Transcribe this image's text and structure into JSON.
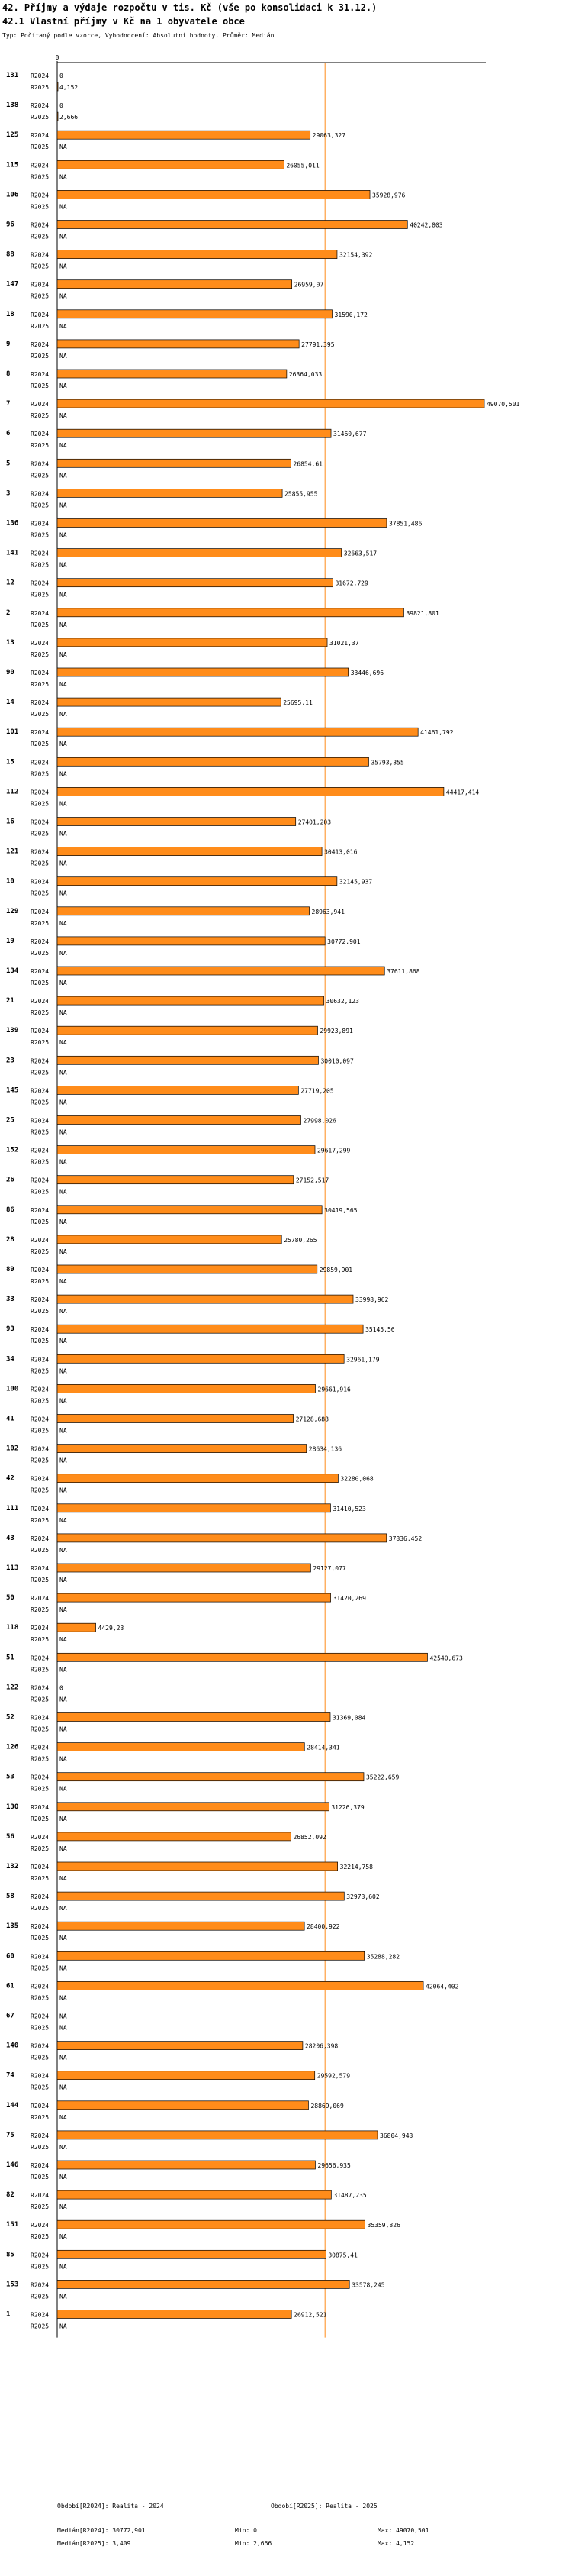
{
  "title": "42. Příjmy a výdaje rozpočtu v tis. Kč (vše po konsolidaci k 31.12.)",
  "subtitle": "42.1 Vlastní příjmy v Kč na 1 obyvatele obce",
  "info": "Typ: Počítaný podle vzorce, Vyhodnocení: Absolutní hodnoty, Průměr: Medián",
  "chart_data": {
    "type": "bar",
    "orientation": "horizontal",
    "xlim": [
      0,
      49070.501
    ],
    "x_ticks": [
      0
    ],
    "median_line": 30772.901,
    "colors": {
      "bar": "#ff8c1a",
      "median": "#ff8c1a",
      "axis": "#000000"
    },
    "series_names": [
      "R2024",
      "R2025"
    ],
    "categories": [
      "131",
      "138",
      "125",
      "115",
      "106",
      "96",
      "88",
      "147",
      "18",
      "9",
      "8",
      "7",
      "6",
      "5",
      "3",
      "136",
      "141",
      "12",
      "2",
      "13",
      "90",
      "14",
      "101",
      "15",
      "112",
      "16",
      "121",
      "10",
      "129",
      "19",
      "134",
      "21",
      "139",
      "23",
      "145",
      "25",
      "152",
      "26",
      "86",
      "28",
      "89",
      "33",
      "93",
      "34",
      "100",
      "41",
      "102",
      "42",
      "111",
      "43",
      "113",
      "50",
      "118",
      "51",
      "122",
      "52",
      "126",
      "53",
      "130",
      "56",
      "132",
      "58",
      "135",
      "60",
      "61",
      "67",
      "140",
      "74",
      "144",
      "75",
      "146",
      "82",
      "151",
      "85",
      "153",
      "1"
    ],
    "series": [
      {
        "name": "R2024",
        "values": [
          0,
          0,
          29063.327,
          26055.011,
          35928.976,
          40242.803,
          32154.392,
          26959.07,
          31590.172,
          27791.395,
          26364.033,
          49070.501,
          31460.677,
          26854.61,
          25855.955,
          37851.486,
          32663.517,
          31672.729,
          39821.801,
          31021.37,
          33446.696,
          25695.11,
          41461.792,
          35793.355,
          44417.414,
          27401.203,
          30413.016,
          32145.937,
          28963.941,
          30772.901,
          37611.868,
          30632.123,
          29923.891,
          30010.097,
          27719.205,
          27998.026,
          29617.299,
          27152.517,
          30419.565,
          25780.265,
          29859.901,
          33998.962,
          35145.56,
          32961.179,
          29661.916,
          27128.688,
          28634.136,
          32280.068,
          31410.523,
          37836.452,
          29127.077,
          31420.269,
          4429.23,
          42540.673,
          0,
          31369.084,
          28414.341,
          35222.659,
          31226.379,
          26852.092,
          32214.758,
          32973.602,
          28400.922,
          35288.282,
          42064.402,
          "NA",
          28206.398,
          29592.579,
          28869.069,
          36804.943,
          29656.935,
          31487.235,
          35359.826,
          30875.41,
          33578.245,
          26912.521
        ]
      },
      {
        "name": "R2025",
        "values": [
          4.152,
          2.666,
          "NA",
          "NA",
          "NA",
          "NA",
          "NA",
          "NA",
          "NA",
          "NA",
          "NA",
          "NA",
          "NA",
          "NA",
          "NA",
          "NA",
          "NA",
          "NA",
          "NA",
          "NA",
          "NA",
          "NA",
          "NA",
          "NA",
          "NA",
          "NA",
          "NA",
          "NA",
          "NA",
          "NA",
          "NA",
          "NA",
          "NA",
          "NA",
          "NA",
          "NA",
          "NA",
          "NA",
          "NA",
          "NA",
          "NA",
          "NA",
          "NA",
          "NA",
          "NA",
          "NA",
          "NA",
          "NA",
          "NA",
          "NA",
          "NA",
          "NA",
          "NA",
          "NA",
          "NA",
          "NA",
          "NA",
          "NA",
          "NA",
          "NA",
          "NA",
          "NA",
          "NA",
          "NA",
          "NA",
          "NA",
          "NA",
          "NA",
          "NA",
          "NA",
          "NA",
          "NA",
          "NA",
          "NA",
          "NA",
          "NA"
        ]
      }
    ]
  },
  "footer": {
    "period_2024": "Období[R2024]: Realita - 2024",
    "period_2025": "Období[R2025]: Realita - 2025",
    "median_2024": "Medián[R2024]: 30772,901",
    "min_2024": "Min: 0",
    "max_2024": "Max: 49070,501",
    "median_2025": "Medián[R2025]: 3,409",
    "min_2025": "Min: 2,666",
    "max_2025": "Max: 4,152"
  }
}
